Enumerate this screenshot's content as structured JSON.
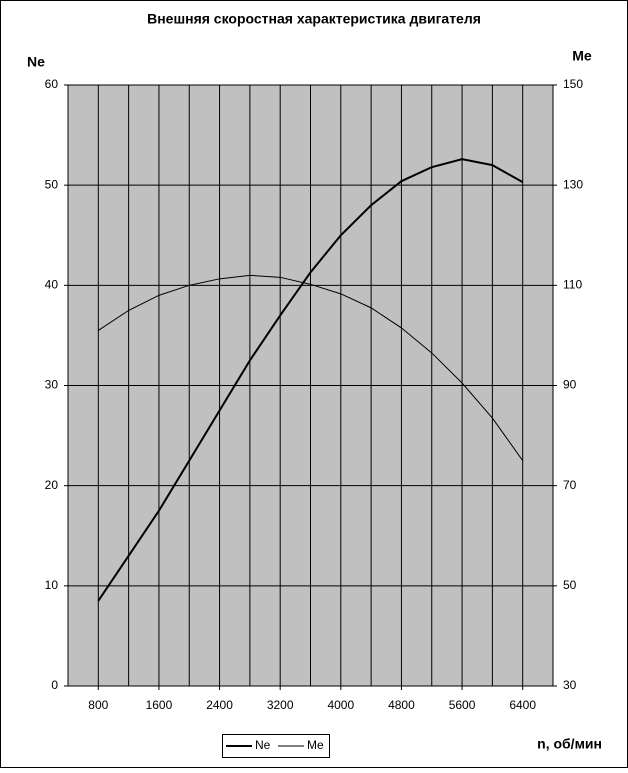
{
  "chart_data": {
    "type": "line",
    "title": "Внешняя скоростная характеристика двигателя",
    "y_label": "Ne",
    "y2_label": "Me",
    "x_label": "n, об/мин",
    "x": [
      800,
      1200,
      1600,
      2000,
      2400,
      2800,
      3200,
      3600,
      4000,
      4400,
      4800,
      5200,
      5600,
      6000,
      6400
    ],
    "xlim": [
      400,
      6800
    ],
    "xticks": [
      800,
      1600,
      2400,
      3200,
      4000,
      4800,
      5600,
      6400
    ],
    "x_grid_step": 400,
    "ylim": [
      0,
      60
    ],
    "yticks": [
      0,
      10,
      20,
      30,
      40,
      50,
      60
    ],
    "y2lim": [
      30,
      150
    ],
    "y2ticks": [
      30,
      50,
      70,
      90,
      110,
      130,
      150
    ],
    "grid": true,
    "plot_background": "#c0c0c0",
    "legend": "bottom",
    "series": [
      {
        "name": "Ne",
        "color": "#000000",
        "values": [
          8.5,
          13,
          17.5,
          22.5,
          27.5,
          32.5,
          37,
          41.3,
          45,
          48,
          50.4,
          51.8,
          52.6,
          52,
          50.3
        ]
      },
      {
        "name": "Me",
        "color": "#000000",
        "axis": "y2",
        "values": [
          101,
          105,
          108,
          110,
          111.3,
          112,
          111.6,
          110.2,
          108.3,
          105.5,
          101.5,
          96.5,
          90.5,
          83.5,
          75
        ]
      }
    ]
  }
}
